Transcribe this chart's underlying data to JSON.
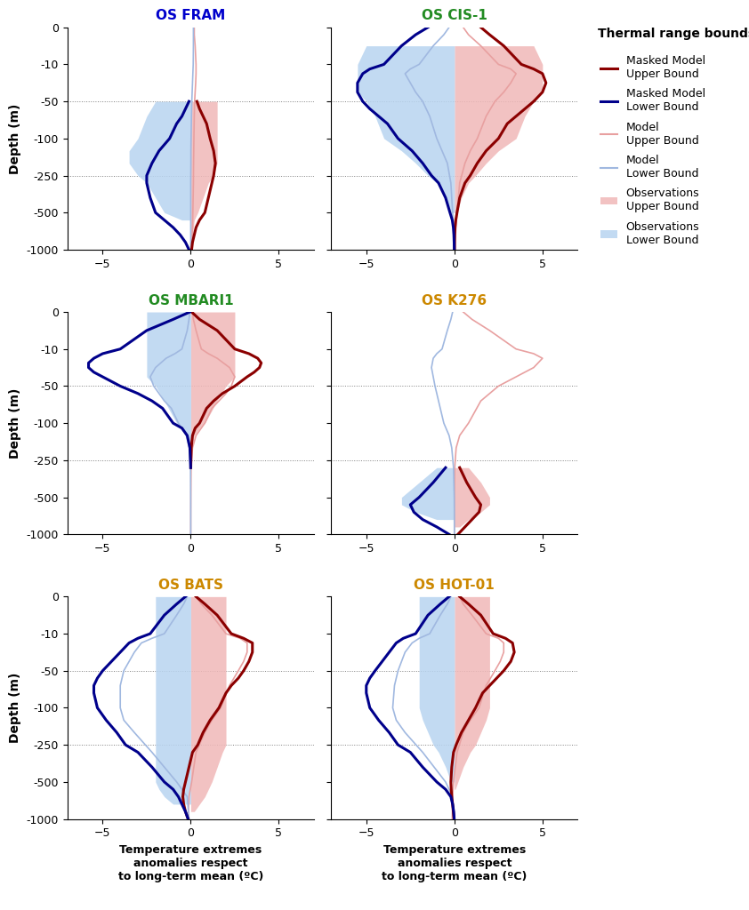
{
  "titles": [
    "OS FRAM",
    "OS CIS-1",
    "OS MBARI1",
    "OS K276",
    "OS BATS",
    "OS HOT-01"
  ],
  "title_colors": [
    "#0000cc",
    "#228B22",
    "#228B22",
    "#cc8800",
    "#cc8800",
    "#cc8800"
  ],
  "x_range": [
    -7,
    7
  ],
  "x_ticks": [
    -5,
    0,
    5
  ],
  "ytick_positions": [
    0,
    -10,
    -50,
    -100,
    -250,
    -500,
    -1000
  ],
  "ytick_labels": [
    "0",
    "-10",
    "-50",
    "-100",
    "-250",
    "-500",
    "-1000"
  ],
  "hline_depths": [
    -50,
    -250,
    -1000
  ],
  "xlabel": "Temperature extremes\nanomalies respect\nto long-term mean (ºC)",
  "ylabel": "Depth (m)",
  "legend_title": "Thermal range bounds",
  "colors": {
    "masked_upper": "#8B0000",
    "masked_lower": "#00008B",
    "model_upper": "#e8a0a0",
    "model_lower": "#a0b8e0",
    "obs_upper_fill": "#f0b8b8",
    "obs_lower_fill": "#b8d4f0"
  },
  "panels": {
    "OS FRAM": {
      "depth_model": [
        0,
        -2,
        -5,
        -10,
        -15,
        -20,
        -30,
        -40,
        -50,
        -70,
        -100,
        -150,
        -200,
        -300,
        -500,
        -700,
        -1000
      ],
      "model_upper": [
        0.2,
        0.2,
        0.25,
        0.3,
        0.3,
        0.3,
        0.28,
        0.25,
        0.22,
        0.2,
        0.18,
        0.17,
        0.16,
        0.15,
        0.12,
        0.1,
        0.08
      ],
      "model_lower": [
        0.15,
        0.15,
        0.15,
        0.14,
        0.13,
        0.12,
        0.1,
        0.08,
        0.06,
        0.04,
        0.02,
        0.01,
        0.01,
        0.0,
        0.0,
        0.0,
        0.0
      ],
      "depth_masked": [
        -50,
        -60,
        -70,
        -80,
        -100,
        -150,
        -200,
        -250,
        -300,
        -400,
        -500,
        -600,
        -700,
        -800,
        -900,
        -1000
      ],
      "masked_upper": [
        0.35,
        0.5,
        0.7,
        0.9,
        1.1,
        1.3,
        1.4,
        1.3,
        1.2,
        1.0,
        0.8,
        0.5,
        0.3,
        0.2,
        0.1,
        0.05
      ],
      "masked_lower": [
        -0.1,
        -0.3,
        -0.5,
        -0.8,
        -1.2,
        -1.8,
        -2.2,
        -2.5,
        -2.5,
        -2.3,
        -2.0,
        -1.5,
        -1.0,
        -0.6,
        -0.3,
        -0.1
      ],
      "obs_upper_depths": [
        -50,
        -100,
        -150,
        -200,
        -250,
        -300,
        -400,
        -500,
        -600,
        -700,
        -800,
        -900,
        -1000
      ],
      "obs_upper_x1": [
        1.5,
        1.5,
        1.5,
        1.5,
        1.3,
        1.0,
        0.7,
        0.4,
        0.2,
        0.15,
        0.1,
        0.05,
        0.02
      ],
      "obs_lower_depths": [
        -50,
        -70,
        -100,
        -150,
        -200,
        -250,
        -300,
        -400,
        -500,
        -600
      ],
      "obs_lower_x0": [
        -2.0,
        -2.5,
        -3.0,
        -3.5,
        -3.5,
        -3.0,
        -2.5,
        -2.0,
        -1.5,
        -0.5
      ]
    },
    "OS CIS-1": {
      "depth_model": [
        0,
        -2,
        -5,
        -10,
        -15,
        -20,
        -30,
        -40,
        -50,
        -70,
        -100,
        -150,
        -200,
        -300,
        -500,
        -700,
        -1000
      ],
      "model_upper": [
        0.5,
        0.8,
        1.5,
        2.5,
        3.2,
        3.5,
        3.2,
        2.8,
        2.3,
        1.8,
        1.3,
        0.9,
        0.6,
        0.3,
        0.15,
        0.08,
        0.04
      ],
      "model_lower": [
        -0.3,
        -0.6,
        -1.2,
        -2.0,
        -2.5,
        -2.8,
        -2.5,
        -2.2,
        -1.8,
        -1.4,
        -1.0,
        -0.7,
        -0.4,
        -0.2,
        -0.1,
        -0.05,
        -0.02
      ],
      "depth_masked": [
        0,
        -2,
        -5,
        -10,
        -15,
        -20,
        -30,
        -40,
        -50,
        -60,
        -70,
        -80,
        -100,
        -150,
        -200,
        -250,
        -300,
        -400,
        -500,
        -600,
        -700,
        -800,
        -900,
        -1000
      ],
      "masked_upper": [
        1.5,
        2.0,
        2.8,
        3.8,
        4.5,
        5.0,
        5.2,
        5.0,
        4.5,
        4.0,
        3.5,
        3.0,
        2.5,
        1.8,
        1.3,
        0.9,
        0.6,
        0.3,
        0.15,
        0.08,
        0.04,
        0.02,
        0.01,
        0.005
      ],
      "masked_lower": [
        -1.5,
        -2.2,
        -3.0,
        -4.0,
        -4.8,
        -5.2,
        -5.5,
        -5.5,
        -5.2,
        -4.8,
        -4.3,
        -3.8,
        -3.2,
        -2.4,
        -1.8,
        -1.3,
        -0.9,
        -0.5,
        -0.25,
        -0.12,
        -0.06,
        -0.03,
        -0.015,
        -0.005
      ],
      "obs_upper_depths": [
        -5,
        -10,
        -20,
        -30,
        -40,
        -50,
        -70,
        -100,
        -150,
        -200,
        -250,
        -300,
        -400,
        -500
      ],
      "obs_upper_x1": [
        4.5,
        5.0,
        5.0,
        5.0,
        5.0,
        4.5,
        4.0,
        3.5,
        2.5,
        1.8,
        1.2,
        0.8,
        0.4,
        0.15
      ],
      "obs_lower_depths": [
        -5,
        -10,
        -20,
        -30,
        -40,
        -50,
        -70,
        -100,
        -150,
        -200,
        -250,
        -300,
        -400,
        -500
      ],
      "obs_lower_x0": [
        -5.0,
        -5.5,
        -5.5,
        -5.5,
        -5.5,
        -5.0,
        -4.5,
        -4.0,
        -3.0,
        -2.2,
        -1.5,
        -1.0,
        -0.5,
        -0.2
      ]
    },
    "OS MBARI1": {
      "depth_model": [
        0,
        -2,
        -5,
        -10,
        -15,
        -20,
        -30,
        -40,
        -50,
        -60,
        -70,
        -80,
        -100,
        -150,
        -200,
        -300,
        -500,
        -700,
        -1000
      ],
      "model_upper": [
        0.1,
        0.15,
        0.3,
        0.6,
        1.0,
        1.5,
        2.2,
        2.5,
        2.3,
        2.0,
        1.6,
        1.2,
        0.8,
        0.3,
        0.1,
        0.02,
        0.005,
        0.001,
        0.001
      ],
      "model_lower": [
        -0.05,
        -0.1,
        -0.2,
        -0.5,
        -0.9,
        -1.4,
        -2.0,
        -2.3,
        -2.1,
        -1.8,
        -1.5,
        -1.1,
        -0.7,
        -0.25,
        -0.08,
        -0.015,
        -0.003,
        -0.001,
        -0.001
      ],
      "depth_masked": [
        0,
        -2,
        -5,
        -10,
        -15,
        -20,
        -25,
        -30,
        -35,
        -40,
        -50,
        -60,
        -70,
        -80,
        -100,
        -120,
        -150,
        -200,
        -250,
        -300
      ],
      "masked_upper": [
        0.05,
        0.5,
        1.5,
        2.5,
        3.3,
        3.8,
        4.0,
        3.9,
        3.6,
        3.2,
        2.5,
        1.8,
        1.3,
        0.9,
        0.5,
        0.25,
        0.1,
        0.03,
        0.01,
        0.003
      ],
      "masked_lower": [
        -0.05,
        -1.0,
        -2.5,
        -4.0,
        -5.0,
        -5.5,
        -5.8,
        -5.8,
        -5.5,
        -5.0,
        -4.0,
        -3.0,
        -2.2,
        -1.6,
        -1.0,
        -0.5,
        -0.2,
        -0.05,
        -0.02,
        -0.005
      ],
      "obs_upper_depths": [
        0,
        -5,
        -10,
        -20,
        -30,
        -40,
        -50,
        -70,
        -100,
        -120,
        -150,
        -200
      ],
      "obs_upper_x1": [
        2.5,
        2.5,
        2.5,
        2.5,
        2.5,
        2.5,
        2.0,
        1.5,
        0.8,
        0.5,
        0.2,
        0.05
      ],
      "obs_lower_depths": [
        0,
        -5,
        -10,
        -20,
        -30,
        -40,
        -50,
        -70,
        -100,
        -120,
        -150,
        -200
      ],
      "obs_lower_x0": [
        -2.5,
        -2.5,
        -2.5,
        -2.5,
        -2.5,
        -2.5,
        -2.0,
        -1.5,
        -0.8,
        -0.5,
        -0.2,
        -0.05
      ]
    },
    "OS K276": {
      "depth_model": [
        0,
        -2,
        -5,
        -10,
        -15,
        -20,
        -30,
        -40,
        -50,
        -70,
        -100,
        -150,
        -200,
        -300,
        -500,
        -700,
        -1000
      ],
      "model_upper": [
        0.5,
        1.0,
        2.0,
        3.5,
        4.5,
        5.0,
        4.5,
        3.5,
        2.5,
        1.5,
        0.8,
        0.3,
        0.1,
        0.02,
        0.005,
        0.001,
        0.001
      ],
      "model_lower": [
        -0.1,
        -0.2,
        -0.4,
        -0.7,
        -1.0,
        -1.2,
        -1.3,
        -1.2,
        -1.1,
        -0.9,
        -0.6,
        -0.3,
        -0.15,
        -0.05,
        -0.01,
        -0.003,
        -0.001
      ],
      "depth_masked": [
        -300,
        -400,
        -500,
        -600,
        -700,
        -800,
        -900,
        -1000
      ],
      "masked_upper": [
        0.3,
        0.7,
        1.2,
        1.5,
        1.4,
        1.0,
        0.6,
        0.2
      ],
      "masked_lower": [
        -0.5,
        -1.2,
        -2.0,
        -2.5,
        -2.3,
        -1.8,
        -1.0,
        -0.3
      ],
      "obs_upper_depths": [
        -300,
        -400,
        -500,
        -600,
        -700,
        -800,
        -900
      ],
      "obs_upper_x1": [
        0.8,
        1.5,
        2.0,
        2.0,
        1.5,
        0.8,
        0.3
      ],
      "obs_lower_depths": [
        -300,
        -400,
        -500,
        -600,
        -700,
        -800
      ],
      "obs_lower_x0": [
        -1.0,
        -2.0,
        -3.0,
        -3.0,
        -2.2,
        -1.0
      ]
    },
    "OS BATS": {
      "depth_model": [
        0,
        -2,
        -5,
        -10,
        -15,
        -20,
        -30,
        -40,
        -50,
        -70,
        -100,
        -150,
        -200,
        -300,
        -500,
        -700,
        -1000
      ],
      "model_upper": [
        0.3,
        0.6,
        1.2,
        2.0,
        2.8,
        3.2,
        3.2,
        3.0,
        2.7,
        2.2,
        1.7,
        1.2,
        0.8,
        0.3,
        0.05,
        -0.1,
        -0.15
      ],
      "model_lower": [
        -0.2,
        -0.4,
        -0.8,
        -1.5,
        -2.2,
        -2.8,
        -3.2,
        -3.5,
        -3.8,
        -4.0,
        -4.0,
        -3.8,
        -3.2,
        -2.2,
        -0.8,
        -0.2,
        -0.1
      ],
      "depth_masked": [
        0,
        -2,
        -5,
        -10,
        -15,
        -20,
        -30,
        -40,
        -50,
        -60,
        -70,
        -80,
        -100,
        -150,
        -200,
        -250,
        -300,
        -400,
        -500,
        -600,
        -700,
        -800,
        -900,
        -1000
      ],
      "masked_upper": [
        0.3,
        0.8,
        1.5,
        2.3,
        3.0,
        3.5,
        3.5,
        3.3,
        3.0,
        2.7,
        2.3,
        2.0,
        1.6,
        1.1,
        0.7,
        0.4,
        0.1,
        -0.1,
        -0.3,
        -0.4,
        -0.45,
        -0.4,
        -0.3,
        -0.15
      ],
      "masked_lower": [
        -0.3,
        -0.8,
        -1.5,
        -2.3,
        -3.0,
        -3.5,
        -4.0,
        -4.5,
        -5.0,
        -5.3,
        -5.5,
        -5.5,
        -5.3,
        -4.8,
        -4.2,
        -3.7,
        -3.0,
        -2.2,
        -1.5,
        -1.0,
        -0.7,
        -0.5,
        -0.3,
        -0.15
      ],
      "obs_upper_depths": [
        0,
        -5,
        -10,
        -20,
        -30,
        -50,
        -70,
        -100,
        -150,
        -200,
        -250,
        -300,
        -400,
        -500,
        -600,
        -700,
        -800,
        -900
      ],
      "obs_upper_x1": [
        2.0,
        2.0,
        2.0,
        2.0,
        2.0,
        2.0,
        2.0,
        2.0,
        2.0,
        2.0,
        2.0,
        1.8,
        1.5,
        1.2,
        1.0,
        0.8,
        0.5,
        0.2
      ],
      "obs_lower_depths": [
        0,
        -5,
        -10,
        -20,
        -30,
        -50,
        -70,
        -100,
        -150,
        -200,
        -250,
        -300,
        -400,
        -500,
        -600,
        -700,
        -800
      ],
      "obs_lower_x0": [
        -2.0,
        -2.0,
        -2.0,
        -2.0,
        -2.0,
        -2.0,
        -2.0,
        -2.0,
        -2.0,
        -2.0,
        -2.0,
        -2.0,
        -2.0,
        -2.0,
        -1.8,
        -1.5,
        -1.0
      ]
    },
    "OS HOT-01": {
      "depth_model": [
        0,
        -2,
        -5,
        -10,
        -15,
        -20,
        -30,
        -40,
        -50,
        -70,
        -100,
        -150,
        -200,
        -300,
        -500,
        -700,
        -1000
      ],
      "model_upper": [
        0.3,
        0.5,
        1.0,
        1.8,
        2.5,
        2.8,
        2.8,
        2.6,
        2.3,
        1.8,
        1.4,
        0.9,
        0.5,
        0.15,
        -0.05,
        -0.1,
        -0.12
      ],
      "model_lower": [
        -0.2,
        -0.4,
        -0.8,
        -1.4,
        -2.0,
        -2.4,
        -2.8,
        -3.0,
        -3.2,
        -3.4,
        -3.5,
        -3.3,
        -2.8,
        -1.8,
        -0.5,
        -0.1,
        -0.05
      ],
      "depth_masked": [
        0,
        -2,
        -5,
        -10,
        -15,
        -20,
        -30,
        -40,
        -50,
        -60,
        -70,
        -80,
        -100,
        -150,
        -200,
        -250,
        -300,
        -400,
        -500,
        -600,
        -700,
        -800,
        -900,
        -1000
      ],
      "masked_upper": [
        0.3,
        0.8,
        1.5,
        2.2,
        2.9,
        3.3,
        3.4,
        3.2,
        2.8,
        2.4,
        2.0,
        1.6,
        1.2,
        0.8,
        0.4,
        0.1,
        -0.05,
        -0.15,
        -0.2,
        -0.18,
        -0.15,
        -0.1,
        -0.06,
        -0.02
      ],
      "masked_lower": [
        -0.3,
        -0.8,
        -1.5,
        -2.2,
        -2.9,
        -3.3,
        -3.7,
        -4.1,
        -4.5,
        -4.8,
        -5.0,
        -5.0,
        -4.8,
        -4.3,
        -3.7,
        -3.2,
        -2.5,
        -1.8,
        -1.0,
        -0.5,
        -0.2,
        -0.1,
        -0.04,
        -0.01
      ],
      "obs_upper_depths": [
        0,
        -5,
        -10,
        -20,
        -30,
        -50,
        -70,
        -100,
        -150,
        -200,
        -250,
        -300,
        -400,
        -500,
        -600
      ],
      "obs_upper_x1": [
        2.0,
        2.0,
        2.0,
        2.0,
        2.0,
        2.0,
        2.0,
        2.0,
        1.8,
        1.5,
        1.2,
        0.9,
        0.5,
        0.2,
        0.05
      ],
      "obs_lower_depths": [
        0,
        -5,
        -10,
        -20,
        -30,
        -50,
        -70,
        -100,
        -150,
        -200,
        -250,
        -300,
        -400,
        -500
      ],
      "obs_lower_x0": [
        -2.0,
        -2.0,
        -2.0,
        -2.0,
        -2.0,
        -2.0,
        -2.0,
        -2.0,
        -1.8,
        -1.5,
        -1.2,
        -0.9,
        -0.5,
        -0.2
      ]
    }
  }
}
